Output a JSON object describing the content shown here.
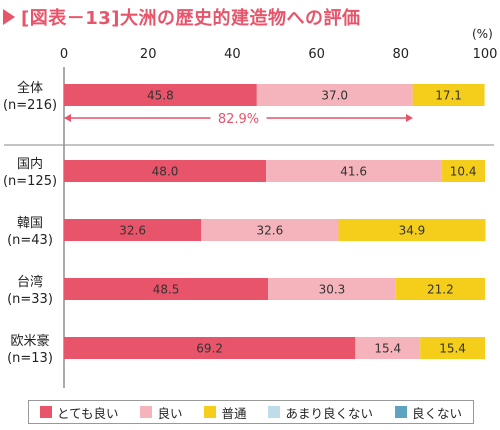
{
  "header": {
    "title": "[図表－13]大洲の歴史的建造物への評価"
  },
  "chart_data": {
    "type": "bar",
    "orientation": "horizontal",
    "stacked": true,
    "unit_label": "(%)",
    "xlim": [
      0,
      100
    ],
    "ticks": [
      0,
      20,
      40,
      60,
      80,
      100
    ],
    "grid": false,
    "categories": [
      {
        "name": "全体",
        "n": "(n=216)"
      },
      {
        "name": "国内",
        "n": "(n=125)"
      },
      {
        "name": "韓国",
        "n": "(n=43)"
      },
      {
        "name": "台湾",
        "n": "(n=33)"
      },
      {
        "name": "欧米豪",
        "n": "(n=13)"
      }
    ],
    "series": [
      {
        "name": "とても良い",
        "color": "#e8546a",
        "values": [
          45.8,
          48.0,
          32.6,
          48.5,
          69.2
        ],
        "labels": [
          "45.8",
          "48.0",
          "32.6",
          "48.5",
          "69.2"
        ]
      },
      {
        "name": "良い",
        "color": "#f5b4bc",
        "values": [
          37.0,
          41.6,
          32.6,
          30.3,
          15.4
        ],
        "labels": [
          "37.0",
          "41.6",
          "32.6",
          "30.3",
          "15.4"
        ]
      },
      {
        "name": "普通",
        "color": "#f5ce1c",
        "values": [
          17.1,
          10.4,
          34.9,
          21.2,
          15.4
        ],
        "labels": [
          "17.1",
          "10.4",
          "34.9",
          "21.2",
          "15.4"
        ]
      },
      {
        "name": "あまり良くない",
        "color": "#bfdce9",
        "values": [
          0,
          0,
          0,
          0,
          0
        ],
        "labels": [
          "",
          "",
          "",
          "",
          ""
        ]
      },
      {
        "name": "良くない",
        "color": "#5ea4c0",
        "values": [
          0,
          0,
          0,
          0,
          0
        ],
        "labels": [
          "",
          "",
          "",
          "",
          ""
        ]
      }
    ],
    "annotation": {
      "text": "82.9%",
      "from": 0,
      "to": 82.9,
      "color": "#e8546a"
    },
    "legend_position": "bottom"
  }
}
